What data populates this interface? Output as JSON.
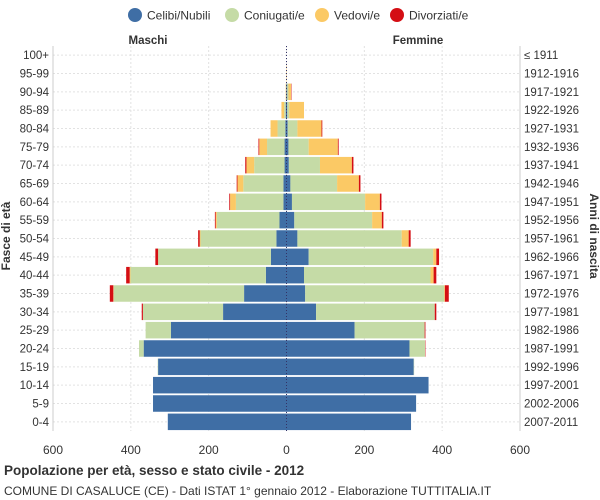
{
  "chart_data": {
    "type": "bar",
    "orientation": "horizontal-population-pyramid",
    "title": "Popolazione per età, sesso e stato civile - 2012",
    "subtitle": "COMUNE DI CASALUCE (CE) - Dati ISTAT 1° gennaio 2012 - Elaborazione TUTTITALIA.IT",
    "ylabel_left": "Fasce di età",
    "ylabel_right": "Anni di nascita",
    "left_group_label": "Maschi",
    "right_group_label": "Femmine",
    "xlim": [
      -600,
      600
    ],
    "x_ticks": [
      -600,
      -400,
      -200,
      0,
      200,
      400,
      600
    ],
    "x_tick_labels": [
      "600",
      "400",
      "200",
      "0",
      "200",
      "400",
      "600"
    ],
    "grid": true,
    "legend": [
      {
        "name": "Celibi/Nubili",
        "color": "#3f6ea5"
      },
      {
        "name": "Coniugati/e",
        "color": "#c5dba6"
      },
      {
        "name": "Vedovi/e",
        "color": "#fbc965"
      },
      {
        "name": "Divorziati/e",
        "color": "#d40e14"
      }
    ],
    "age_groups": [
      "100+",
      "95-99",
      "90-94",
      "85-89",
      "80-84",
      "75-79",
      "70-74",
      "65-69",
      "60-64",
      "55-59",
      "50-54",
      "45-49",
      "40-44",
      "35-39",
      "30-34",
      "25-29",
      "20-24",
      "15-19",
      "10-14",
      "5-9",
      "0-4"
    ],
    "birth_years": [
      "≤ 1911",
      "1912-1916",
      "1917-1921",
      "1922-1926",
      "1927-1931",
      "1932-1936",
      "1937-1941",
      "1942-1946",
      "1947-1951",
      "1952-1956",
      "1957-1961",
      "1962-1966",
      "1967-1971",
      "1972-1976",
      "1977-1981",
      "1982-1986",
      "1987-1991",
      "1992-1996",
      "1997-2001",
      "2002-2006",
      "2007-2011"
    ],
    "males": {
      "celibi": [
        0,
        0,
        0,
        2,
        3,
        5,
        5,
        8,
        8,
        18,
        26,
        40,
        53,
        109,
        163,
        297,
        367,
        330,
        343,
        343,
        305
      ],
      "coniugati": [
        0,
        0,
        1,
        4,
        20,
        45,
        78,
        103,
        122,
        161,
        195,
        290,
        348,
        335,
        206,
        65,
        12,
        1,
        0,
        0,
        0
      ],
      "vedovi": [
        0,
        0,
        1,
        7,
        18,
        20,
        20,
        15,
        15,
        3,
        2,
        0,
        2,
        1,
        0,
        0,
        0,
        0,
        0,
        0,
        0
      ],
      "divorziati": [
        0,
        0,
        0,
        0,
        0,
        2,
        3,
        2,
        2,
        2,
        4,
        7,
        9,
        9,
        3,
        0,
        0,
        0,
        0,
        0,
        0
      ]
    },
    "females": {
      "nubili": [
        0,
        0,
        2,
        2,
        3,
        5,
        6,
        10,
        14,
        20,
        28,
        57,
        45,
        48,
        76,
        175,
        316,
        327,
        365,
        333,
        320
      ],
      "coniugate": [
        0,
        0,
        3,
        5,
        25,
        52,
        80,
        120,
        188,
        200,
        268,
        320,
        325,
        357,
        305,
        180,
        40,
        1,
        0,
        0,
        0
      ],
      "vedove": [
        0,
        1,
        7,
        38,
        62,
        75,
        82,
        56,
        38,
        25,
        18,
        8,
        8,
        2,
        0,
        0,
        0,
        0,
        0,
        0,
        0
      ],
      "divorziate": [
        0,
        0,
        1,
        0,
        2,
        2,
        4,
        4,
        4,
        4,
        5,
        7,
        7,
        10,
        4,
        2,
        1,
        0,
        0,
        0,
        0
      ]
    }
  }
}
